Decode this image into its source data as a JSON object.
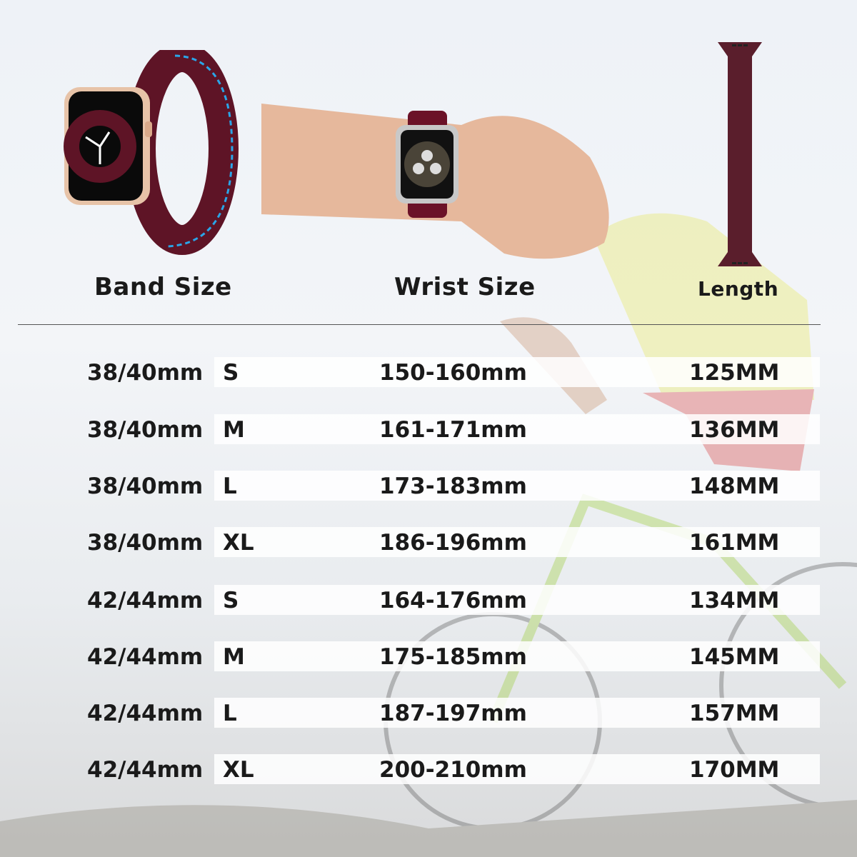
{
  "headers": {
    "band_size": "Band Size",
    "wrist_size": "Wrist Size",
    "length": "Length"
  },
  "colors": {
    "band": "#5e1426",
    "dashed_arrow": "#2aa6e8"
  },
  "rows": [
    {
      "case": "38/40mm",
      "size": "S",
      "wrist": "150-160mm",
      "length": "125MM"
    },
    {
      "case": "38/40mm",
      "size": "M",
      "wrist": "161-171mm",
      "length": "136MM"
    },
    {
      "case": "38/40mm",
      "size": "L",
      "wrist": "173-183mm",
      "length": "148MM"
    },
    {
      "case": "38/40mm",
      "size": "XL",
      "wrist": "186-196mm",
      "length": "161MM"
    },
    {
      "case": "42/44mm",
      "size": "S",
      "wrist": "164-176mm",
      "length": "134MM"
    },
    {
      "case": "42/44mm",
      "size": "M",
      "wrist": "175-185mm",
      "length": "145MM"
    },
    {
      "case": "42/44mm",
      "size": "L",
      "wrist": "187-197mm",
      "length": "157MM"
    },
    {
      "case": "42/44mm",
      "size": "XL",
      "wrist": "200-210mm",
      "length": "170MM"
    }
  ]
}
